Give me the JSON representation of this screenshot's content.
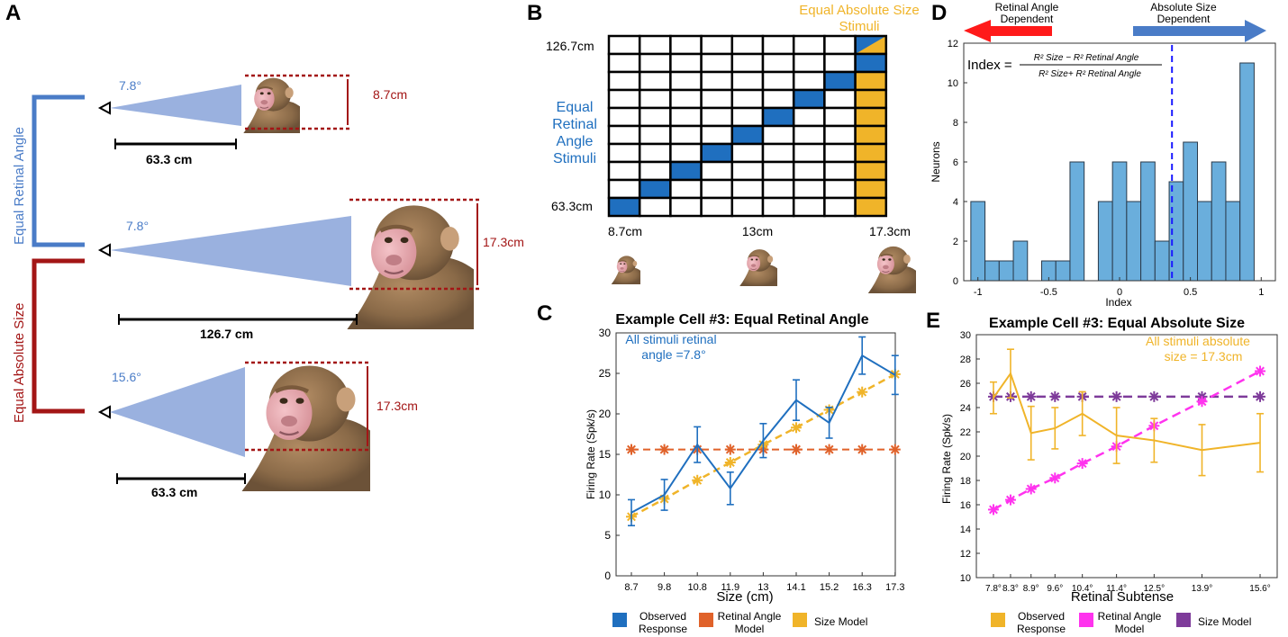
{
  "panels": {
    "A": {
      "label": "A",
      "bracket_labels": [
        "Equal Retinal Angle",
        "Equal Absolute Size"
      ],
      "rows": [
        {
          "angle": "7.8°",
          "size": "8.7cm",
          "distance": "63.3 cm"
        },
        {
          "angle": "7.8°",
          "size": "17.3cm",
          "distance": "126.7 cm"
        },
        {
          "angle": "15.6°",
          "size": "17.3cm",
          "distance": "63.3 cm"
        }
      ]
    },
    "B": {
      "label": "B",
      "title_line1": "Equal Absolute Size",
      "title_line2": "Stimuli",
      "left_label": [
        "Equal",
        "Retinal",
        "Angle",
        "Stimuli"
      ],
      "y_top": "126.7cm",
      "y_bottom": "63.3cm",
      "x_labels": [
        "8.7cm",
        "13cm",
        "17.3cm"
      ]
    },
    "C": {
      "label": "C"
    },
    "D": {
      "label": "D",
      "arrow_left": [
        "Retinal Angle",
        "Dependent"
      ],
      "arrow_right": [
        "Absolute Size",
        "Dependent"
      ],
      "formula_lhs": "Index =",
      "formula_num": "R² Size − R² Retinal Angle",
      "formula_den": "R² Size+ R² Retinal Angle"
    },
    "E": {
      "label": "E"
    }
  },
  "colors": {
    "blue": "#1f6fbf",
    "orange": "#e0622a",
    "yellow": "#f0b429",
    "magenta": "#ff33ee",
    "purple": "#7e3b9a",
    "darkred": "#a31515",
    "bracket_blue": "#4a7cc7",
    "cone": "#8fa8dc",
    "hist": "#6aaedc"
  },
  "chart_data": [
    {
      "id": "B",
      "type": "heatmap",
      "rows": 10,
      "cols": 9,
      "diagonal_blue": [
        [
          9,
          0
        ],
        [
          8,
          1
        ],
        [
          7,
          2
        ],
        [
          6,
          3
        ],
        [
          5,
          4
        ],
        [
          4,
          5
        ],
        [
          3,
          6
        ],
        [
          2,
          7
        ],
        [
          1,
          8
        ]
      ],
      "yellow_column": 8,
      "split_cell": [
        0,
        8
      ]
    },
    {
      "id": "C",
      "type": "line",
      "title": "Example Cell #3: Equal Retinal Angle",
      "annotation": [
        "All stimuli retinal",
        "angle =7.8°"
      ],
      "xlabel": "Size (cm)",
      "ylabel": "Firing Rate (Spk/s)",
      "categories": [
        "8.7",
        "9.8",
        "10.8",
        "11.9",
        "13",
        "14.1",
        "15.2",
        "16.3",
        "17.3"
      ],
      "ylim": [
        0,
        30
      ],
      "yticks": [
        0,
        5,
        10,
        15,
        20,
        25,
        30
      ],
      "series": [
        {
          "name": "Observed Response",
          "values": [
            7.8,
            10.0,
            16.2,
            10.8,
            16.7,
            21.7,
            18.9,
            27.2,
            24.8
          ],
          "err": [
            1.6,
            1.9,
            2.2,
            2.0,
            2.1,
            2.5,
            1.9,
            2.3,
            2.4
          ]
        },
        {
          "name": "Retinal Angle Model",
          "values": [
            15.6,
            15.6,
            15.6,
            15.6,
            15.6,
            15.6,
            15.6,
            15.6,
            15.6
          ]
        },
        {
          "name": "Size Model",
          "values": [
            7.3,
            9.5,
            11.8,
            14.0,
            16.2,
            18.3,
            20.5,
            22.7,
            24.9
          ]
        }
      ],
      "legend": [
        [
          "Observed",
          "Response"
        ],
        [
          "Retinal Angle",
          "Model"
        ],
        [
          "Size Model"
        ]
      ]
    },
    {
      "id": "D",
      "type": "bar",
      "xlabel": "Index",
      "ylabel": "Neurons",
      "xlim": [
        -1.1,
        1.1
      ],
      "ylim": [
        0,
        12
      ],
      "xticks": [
        "-1",
        "-0.5",
        "0",
        "0.5",
        "1"
      ],
      "yticks": [
        "0",
        "2",
        "4",
        "6",
        "8",
        "10",
        "12"
      ],
      "bin_start": -1.05,
      "bin_width": 0.1,
      "values": [
        4,
        1,
        1,
        2,
        0,
        1,
        1,
        6,
        0,
        4,
        6,
        4,
        6,
        2,
        5,
        7,
        4,
        6,
        4,
        11
      ],
      "dashed_line_x": 0.37
    },
    {
      "id": "E",
      "type": "line",
      "title": "Example Cell #3: Equal Absolute Size",
      "annotation": [
        "All stimuli absolute",
        "size = 17.3cm"
      ],
      "xlabel": "Retinal Subtense",
      "ylabel": "Firing Rate (Spk/s)",
      "x": [
        7.8,
        8.3,
        8.9,
        9.6,
        10.4,
        11.4,
        12.5,
        13.9,
        15.6
      ],
      "xticks": [
        "7.8°",
        "8.3°",
        "8.9°",
        "9.6°",
        "10.4°",
        "11.4°",
        "12.5°",
        "13.9°",
        "15.6°"
      ],
      "ylim": [
        10,
        30
      ],
      "yticks": [
        10,
        12,
        14,
        16,
        18,
        20,
        22,
        24,
        26,
        28,
        30
      ],
      "series": [
        {
          "name": "Observed Response",
          "values": [
            24.8,
            26.8,
            21.9,
            22.3,
            23.5,
            21.7,
            21.3,
            20.5,
            21.1
          ],
          "err": [
            1.3,
            2.0,
            2.2,
            1.7,
            1.8,
            2.3,
            1.8,
            2.1,
            2.4
          ]
        },
        {
          "name": "Retinal Angle Model",
          "values": [
            15.6,
            16.4,
            17.3,
            18.2,
            19.4,
            20.8,
            22.5,
            24.5,
            27.0
          ]
        },
        {
          "name": "Size Model",
          "values": [
            24.9,
            24.9,
            24.9,
            24.9,
            24.9,
            24.9,
            24.9,
            24.9,
            24.9
          ]
        }
      ],
      "legend": [
        [
          "Observed",
          "Response"
        ],
        [
          "Retinal Angle",
          "Model"
        ],
        [
          "Size Model"
        ]
      ]
    }
  ]
}
